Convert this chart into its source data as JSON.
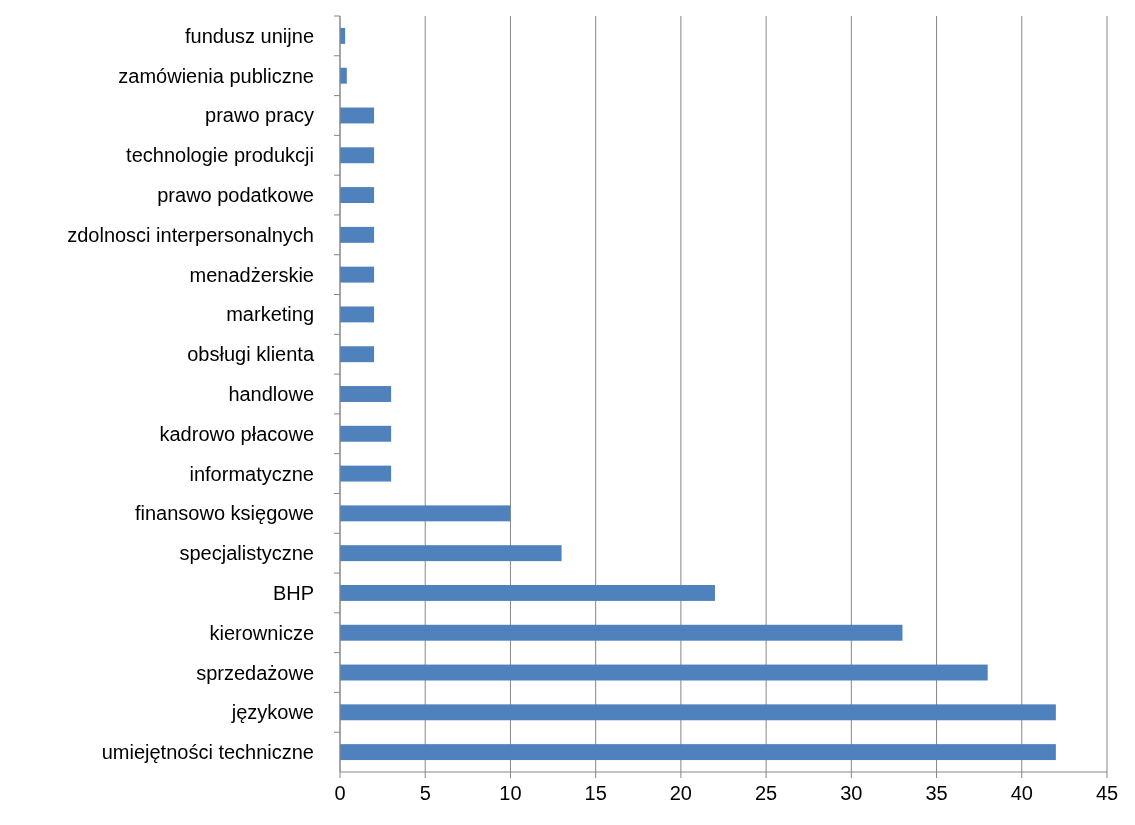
{
  "chart_data": {
    "type": "bar",
    "orientation": "horizontal",
    "categories": [
      "fundusz unijne",
      "zamówienia publiczne",
      "prawo pracy",
      "technologie produkcji",
      "prawo podatkowe",
      "zdolnosci interpersonalnych",
      "menadżerskie",
      "marketing",
      "obsługi klienta",
      "handlowe",
      "kadrowo płacowe",
      "informatyczne",
      "finansowo księgowe",
      "specjalistyczne",
      "BHP",
      "kierownicze",
      "sprzedażowe",
      "językowe",
      "umiejętności techniczne"
    ],
    "values": [
      0.3,
      0.4,
      2,
      2,
      2,
      2,
      2,
      2,
      2,
      3,
      3,
      3,
      10,
      13,
      22,
      33,
      38,
      42,
      42
    ],
    "color": "#4f81bd",
    "xlim": [
      0,
      45
    ],
    "xticks": [
      0,
      5,
      10,
      15,
      20,
      25,
      30,
      35,
      40,
      45
    ],
    "grid": "x"
  }
}
